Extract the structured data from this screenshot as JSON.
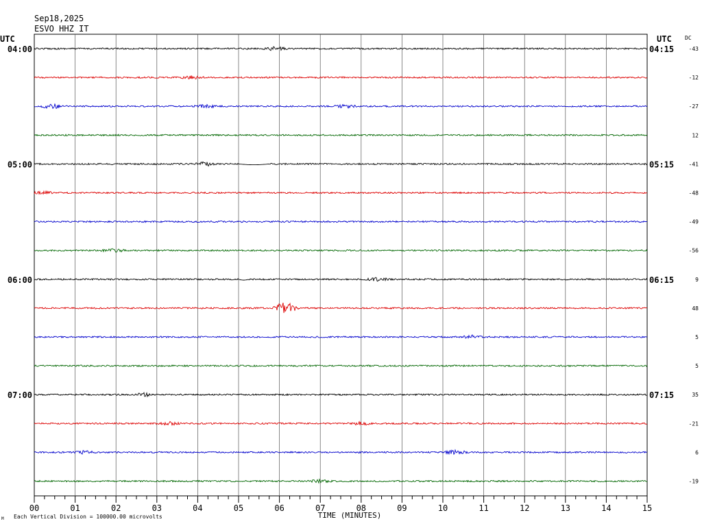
{
  "header": {
    "date": "Sep18,2025",
    "station": "ESVO HHZ IT",
    "utc_left": "UTC",
    "utc_right": "UTC",
    "dc_label": "DC"
  },
  "footer": {
    "x_axis_title": "TIME (MINUTES)",
    "scale_note": "Each Vertical Division = 100000.00 microvolts",
    "corner_mark": "M"
  },
  "colors": {
    "trace_cycle": [
      "#000000",
      "#dd0000",
      "#0000cc",
      "#006600"
    ],
    "grid": "#000000",
    "background": "#ffffff"
  },
  "chart_data": {
    "type": "line",
    "subtype": "helicorder",
    "x_unit": "minutes",
    "xlim": [
      0,
      15
    ],
    "x_ticks": [
      "00",
      "01",
      "02",
      "03",
      "04",
      "05",
      "06",
      "07",
      "08",
      "09",
      "10",
      "11",
      "12",
      "13",
      "14",
      "15"
    ],
    "rows_per_hour": 4,
    "left_time_labels": [
      "04:00",
      "05:00",
      "06:00",
      "07:00"
    ],
    "right_time_labels": [
      "04:15",
      "05:15",
      "06:15",
      "07:15"
    ],
    "dc_offsets": [
      "-43",
      "-12",
      "-27",
      "12",
      "-41",
      "-48",
      "-49",
      "-56",
      "9",
      "48",
      "5",
      "5",
      "35",
      "-21",
      "6",
      "-19"
    ],
    "traces": [
      {
        "row": 0,
        "start": "04:00",
        "events": [
          {
            "minute": 5.9,
            "amplitude": 2.5
          }
        ]
      },
      {
        "row": 1,
        "start": "04:15",
        "events": [
          {
            "minute": 3.85,
            "amplitude": 2
          }
        ]
      },
      {
        "row": 2,
        "start": "04:30",
        "events": [
          {
            "minute": 0.45,
            "amplitude": 3
          },
          {
            "minute": 4.15,
            "amplitude": 2
          },
          {
            "minute": 7.6,
            "amplitude": 2
          }
        ]
      },
      {
        "row": 3,
        "start": "04:45",
        "events": []
      },
      {
        "row": 4,
        "start": "05:00",
        "events": [
          {
            "minute": 4.2,
            "amplitude": 2.5
          }
        ],
        "dropout": [
          5.0,
          5.75
        ]
      },
      {
        "row": 5,
        "start": "05:15",
        "events": [
          {
            "minute": 0.2,
            "amplitude": 2
          }
        ]
      },
      {
        "row": 6,
        "start": "05:30",
        "events": []
      },
      {
        "row": 7,
        "start": "05:45",
        "events": [
          {
            "minute": 1.95,
            "amplitude": 2
          }
        ]
      },
      {
        "row": 8,
        "start": "06:00",
        "events": [
          {
            "minute": 8.4,
            "amplitude": 2
          }
        ],
        "dropout": [
          5.0,
          5.25
        ]
      },
      {
        "row": 9,
        "start": "06:15",
        "events": [
          {
            "minute": 6.15,
            "amplitude": 10
          }
        ]
      },
      {
        "row": 10,
        "start": "06:30",
        "events": [
          {
            "minute": 10.7,
            "amplitude": 2.5
          }
        ]
      },
      {
        "row": 11,
        "start": "06:45",
        "events": []
      },
      {
        "row": 12,
        "start": "07:00",
        "events": [
          {
            "minute": 2.7,
            "amplitude": 2
          }
        ]
      },
      {
        "row": 13,
        "start": "07:15",
        "events": [
          {
            "minute": 3.3,
            "amplitude": 2
          },
          {
            "minute": 8.0,
            "amplitude": 2
          }
        ]
      },
      {
        "row": 14,
        "start": "07:30",
        "events": [
          {
            "minute": 1.2,
            "amplitude": 2
          },
          {
            "minute": 10.3,
            "amplitude": 3
          }
        ]
      },
      {
        "row": 15,
        "start": "07:45",
        "events": [
          {
            "minute": 7.0,
            "amplitude": 2
          }
        ]
      }
    ]
  }
}
